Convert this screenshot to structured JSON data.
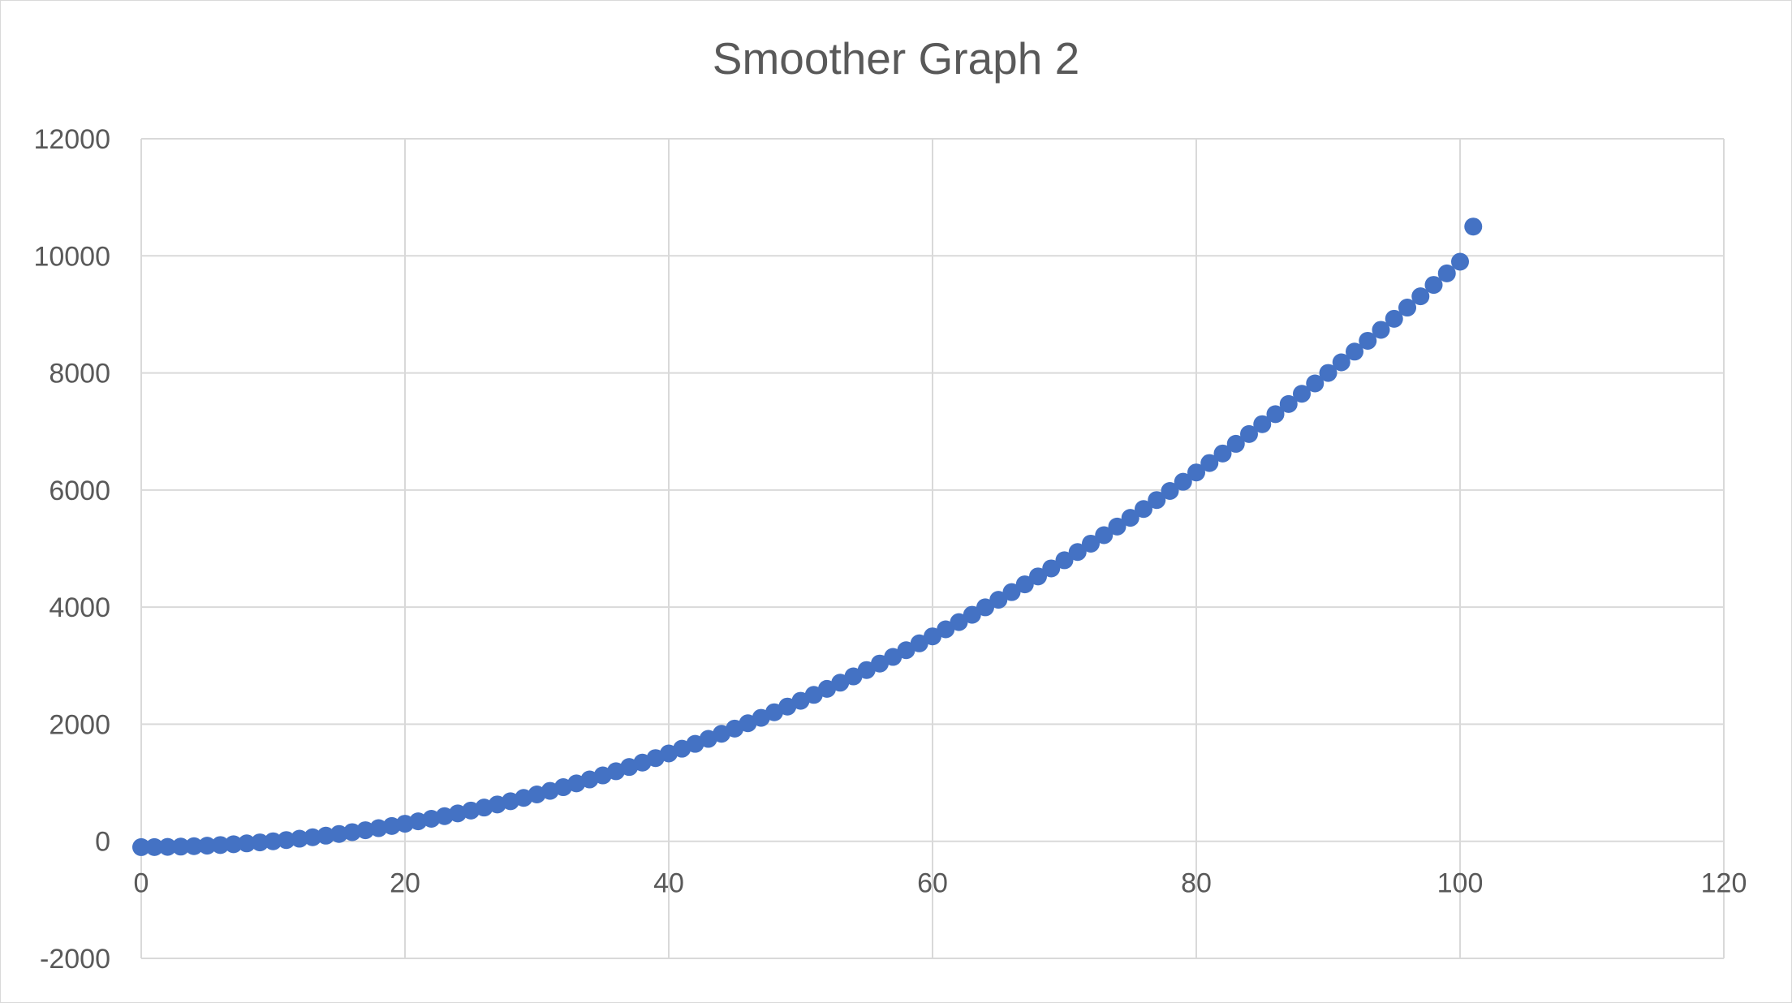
{
  "chart_data": {
    "type": "scatter",
    "title": "Smoother Graph 2",
    "xlabel": "",
    "ylabel": "",
    "xlim": [
      0,
      120
    ],
    "ylim": [
      -2000,
      12000
    ],
    "x_ticks": [
      0,
      20,
      40,
      60,
      80,
      100,
      120
    ],
    "y_ticks": [
      -2000,
      0,
      2000,
      4000,
      6000,
      8000,
      10000,
      12000
    ],
    "x_tick_labels": [
      "0",
      "20",
      "40",
      "60",
      "80",
      "100",
      "120"
    ],
    "y_tick_labels": [
      "-2000",
      "0",
      "2000",
      "4000",
      "6000",
      "8000",
      "10000",
      "12000"
    ],
    "grid": true,
    "legend": "none",
    "marker_color": "#4472C4",
    "grid_color": "#d9d9d9",
    "series": [
      {
        "x": [
          0,
          1,
          2,
          3,
          4,
          5,
          6,
          7,
          8,
          9,
          10,
          11,
          12,
          13,
          14,
          15,
          16,
          17,
          18,
          19,
          20,
          21,
          22,
          23,
          24,
          25,
          26,
          27,
          28,
          29,
          30,
          31,
          32,
          33,
          34,
          35,
          36,
          37,
          38,
          39,
          40,
          41,
          42,
          43,
          44,
          45,
          46,
          47,
          48,
          49,
          50,
          51,
          52,
          53,
          54,
          55,
          56,
          57,
          58,
          59,
          60,
          61,
          62,
          63,
          64,
          65,
          66,
          67,
          68,
          69,
          70,
          71,
          72,
          73,
          74,
          75,
          76,
          77,
          78,
          79,
          80,
          81,
          82,
          83,
          84,
          85,
          86,
          87,
          88,
          89,
          90,
          91,
          92,
          93,
          94,
          95,
          96,
          97,
          98,
          99,
          100,
          101
        ],
        "y": [
          -100,
          -99,
          -96,
          -91,
          -84,
          -75,
          -64,
          -51,
          -36,
          -19,
          0,
          21,
          44,
          69,
          96,
          125,
          156,
          189,
          224,
          261,
          300,
          341,
          384,
          429,
          476,
          525,
          576,
          629,
          684,
          741,
          800,
          861,
          924,
          989,
          1056,
          1125,
          1196,
          1269,
          1344,
          1421,
          1500,
          1581,
          1664,
          1749,
          1836,
          1925,
          2016,
          2109,
          2204,
          2301,
          2400,
          2501,
          2604,
          2709,
          2816,
          2925,
          3036,
          3149,
          3264,
          3381,
          3500,
          3621,
          3744,
          3869,
          3996,
          4125,
          4256,
          4389,
          4524,
          4661,
          4800,
          4941,
          5084,
          5229,
          5376,
          5525,
          5676,
          5829,
          5984,
          6141,
          6300,
          6461,
          6624,
          6789,
          6956,
          7125,
          7296,
          7469,
          7644,
          7821,
          8000,
          8181,
          8364,
          8549,
          8736,
          8925,
          9116,
          9309,
          9504,
          9701,
          9900,
          10500
        ]
      }
    ]
  }
}
